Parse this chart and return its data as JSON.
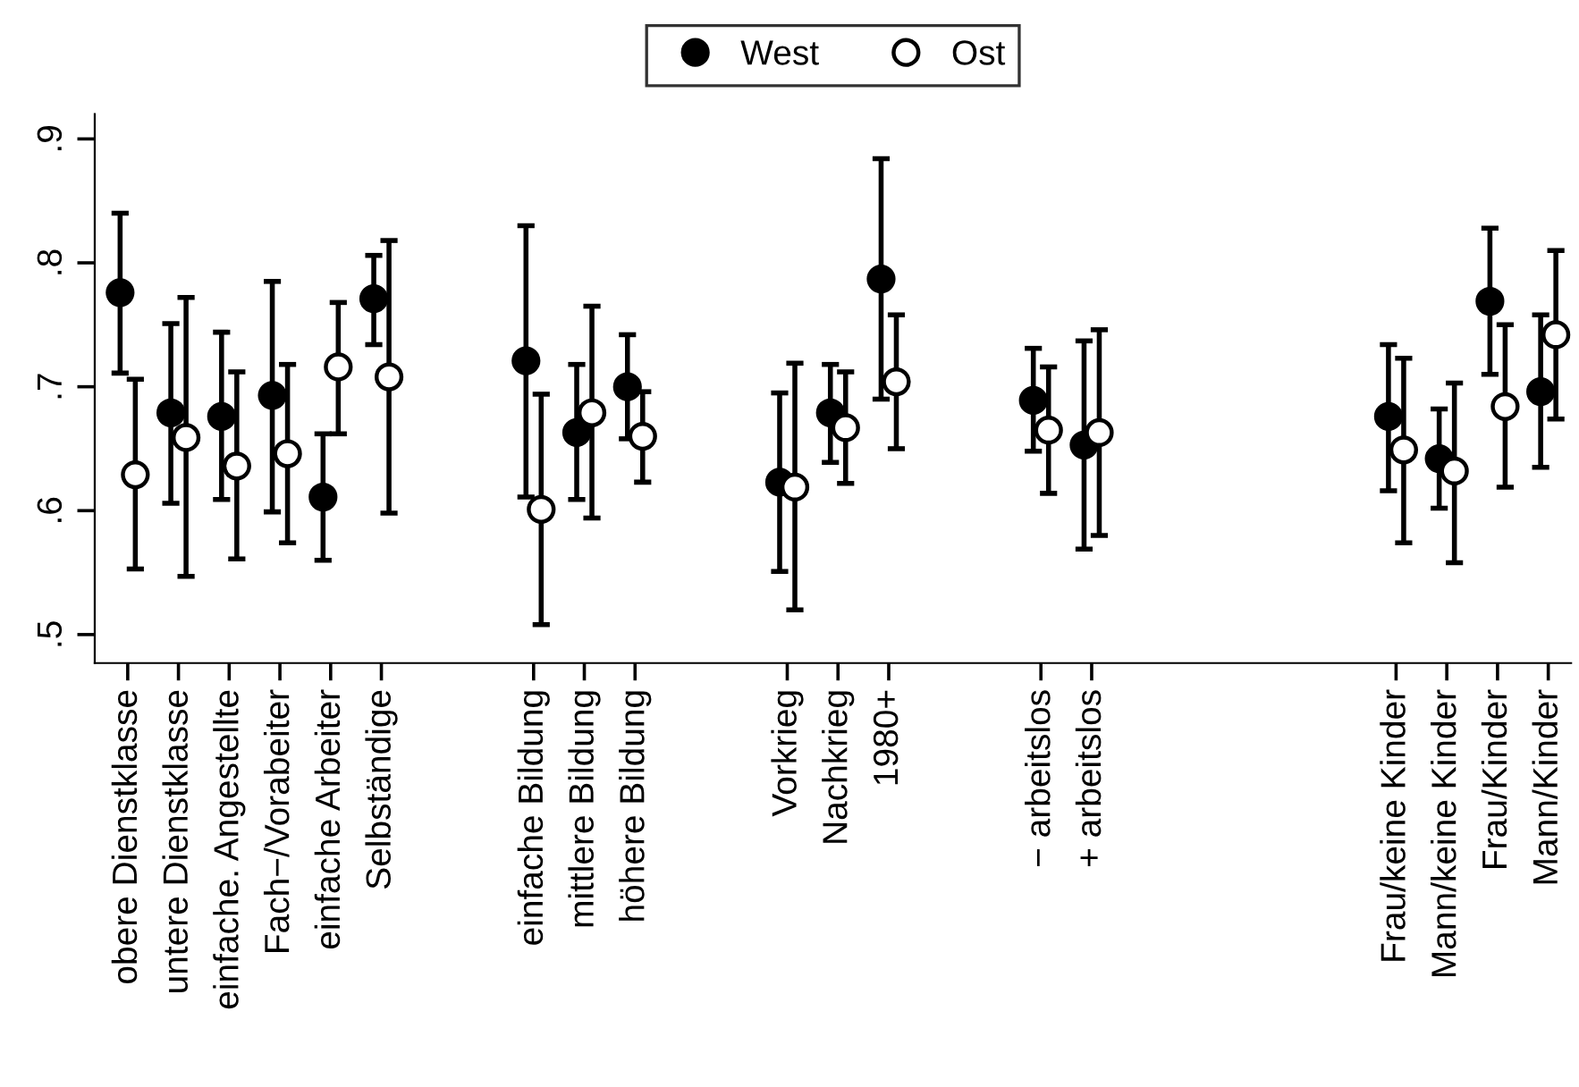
{
  "chart_data": {
    "type": "scatter",
    "categories": [
      "obere Dienstklasse",
      "untere Dienstklasse",
      "einfache. Angestellte",
      "Fach−/Vorabeiter",
      "einfache Arbeiter",
      "Selbständige",
      null,
      null,
      "einfache Bildung",
      "mittlere Bildung",
      "höhere Bildung",
      null,
      null,
      "Vorkrieg",
      "Nachkrieg",
      "1980+",
      null,
      null,
      "− arbeitslos",
      "+ arbeitslos",
      null,
      null,
      null,
      null,
      null,
      "Frau/keine Kinder",
      "Mann/keine Kinder",
      "Frau/Kinder",
      "Mann/Kinder"
    ],
    "series": [
      {
        "name": "West",
        "color": "#000000",
        "values": [
          0.776,
          0.679,
          0.676,
          0.693,
          0.611,
          0.771,
          null,
          null,
          0.721,
          0.663,
          0.7,
          null,
          null,
          0.623,
          0.679,
          0.787,
          null,
          null,
          0.689,
          0.653,
          null,
          null,
          null,
          null,
          null,
          0.676,
          0.642,
          0.769,
          0.696
        ],
        "errors": [
          [
            0.711,
            0.84
          ],
          [
            0.606,
            0.751
          ],
          [
            0.609,
            0.744
          ],
          [
            0.599,
            0.785
          ],
          [
            0.56,
            0.662
          ],
          [
            0.734,
            0.806
          ],
          null,
          null,
          [
            0.611,
            0.83
          ],
          [
            0.609,
            0.718
          ],
          [
            0.658,
            0.742
          ],
          null,
          null,
          [
            0.551,
            0.695
          ],
          [
            0.639,
            0.718
          ],
          [
            0.69,
            0.884
          ],
          null,
          null,
          [
            0.648,
            0.731
          ],
          [
            0.569,
            0.737
          ],
          null,
          null,
          null,
          null,
          null,
          [
            0.616,
            0.734
          ],
          [
            0.602,
            0.682
          ],
          [
            0.71,
            0.828
          ],
          [
            0.635,
            0.758
          ]
        ]
      },
      {
        "name": "Ost",
        "color": "#000000",
        "values": [
          0.629,
          0.659,
          0.636,
          0.646,
          0.716,
          0.708,
          null,
          null,
          0.601,
          0.679,
          0.66,
          null,
          null,
          0.619,
          0.667,
          0.704,
          null,
          null,
          0.665,
          0.663,
          null,
          null,
          null,
          null,
          null,
          0.649,
          0.632,
          0.684,
          0.742
        ],
        "errors": [
          [
            0.553,
            0.706
          ],
          [
            0.547,
            0.772
          ],
          [
            0.561,
            0.712
          ],
          [
            0.574,
            0.718
          ],
          [
            0.662,
            0.768
          ],
          [
            0.598,
            0.818
          ],
          null,
          null,
          [
            0.508,
            0.694
          ],
          [
            0.594,
            0.765
          ],
          [
            0.623,
            0.696
          ],
          null,
          null,
          [
            0.52,
            0.719
          ],
          [
            0.622,
            0.712
          ],
          [
            0.65,
            0.758
          ],
          null,
          null,
          [
            0.614,
            0.716
          ],
          [
            0.58,
            0.746
          ],
          null,
          null,
          null,
          null,
          null,
          [
            0.574,
            0.723
          ],
          [
            0.558,
            0.703
          ],
          [
            0.619,
            0.75
          ],
          [
            0.674,
            0.81
          ]
        ]
      }
    ],
    "ylim": [
      0.477,
      0.92
    ],
    "yticks": [
      {
        "value": 0.5,
        "label": ".5"
      },
      {
        "value": 0.6,
        "label": ".6"
      },
      {
        "value": 0.7,
        "label": ".7"
      },
      {
        "value": 0.8,
        "label": ".8"
      },
      {
        "value": 0.9,
        "label": ".9"
      }
    ],
    "marker": "circle",
    "legend": "top",
    "grid": false
  }
}
